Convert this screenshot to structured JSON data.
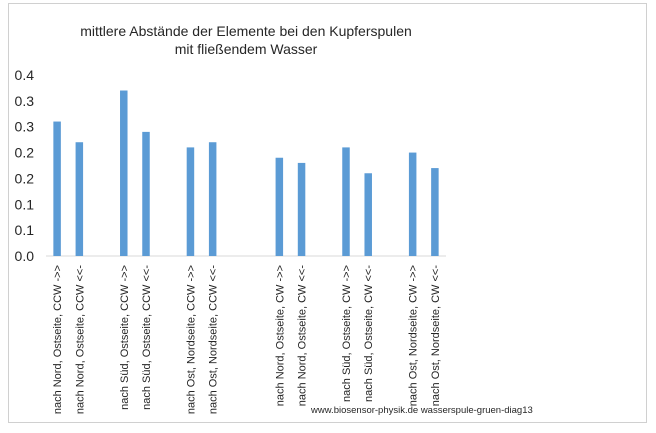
{
  "chart_data": {
    "type": "bar",
    "title_lines": [
      "mittlere Abstände der Elemente bei den Kupferspulen",
      "mit fließendem Wasser"
    ],
    "xlabel": "",
    "ylabel": "",
    "ylim": [
      0,
      0.35
    ],
    "grid": false,
    "legend": "none",
    "ytick_values": [
      0,
      0.05,
      0.1,
      0.15,
      0.2,
      0.25,
      0.3,
      0.35
    ],
    "ytick_labels": [
      "0.0",
      "0.1",
      "0.1",
      "0.2",
      "0.2",
      "0.3",
      "0.3",
      "0.4"
    ],
    "categories": [
      "nach Nord, Ostseite, CCW ->>",
      "nach Nord, Ostseite, CCW <<-",
      "",
      "nach Süd, Ostseite, CCW ->>",
      "nach Süd, Ostseite, CCW <<-",
      "",
      "nach Ost, Nordseite, CCW ->>",
      "nach Ost, Nordseite, CCW <<-",
      "",
      "",
      "nach Nord, Ostseite, CW ->>",
      "nach Nord, Ostseite, CW <<-",
      "",
      "nach Süd, Ostseite, CW ->>",
      "nach Süd, Ostseite, CW <<-",
      "",
      "nach Ost, Nordseite, CW ->>",
      "nach Ost, Nordseite, CW <<-"
    ],
    "values": [
      0.26,
      0.22,
      null,
      0.32,
      0.24,
      null,
      0.21,
      0.22,
      null,
      null,
      0.19,
      0.18,
      null,
      0.21,
      0.16,
      null,
      0.2,
      0.17
    ],
    "bar_color": "#5b9bd5",
    "credit": "www.biosensor-physik.de  wasserspule-gruen-diag13"
  }
}
